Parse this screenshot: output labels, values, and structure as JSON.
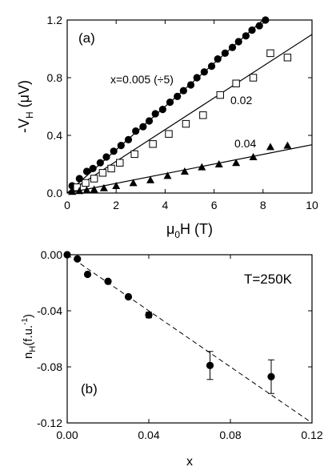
{
  "chart_data": [
    {
      "type": "scatter",
      "panel_label": "(a)",
      "xlabel_base": "μ",
      "xlabel_sub": "0",
      "xlabel_rest": "H (T)",
      "ylabel_pre": "-V",
      "ylabel_sub": "H",
      "ylabel_rest": " (μV)",
      "xlim": [
        0,
        10
      ],
      "ylim": [
        0,
        1.2
      ],
      "xticks": [
        0,
        2,
        4,
        6,
        8,
        10
      ],
      "xtick_labels": [
        "0",
        "2",
        "4",
        "6",
        "8",
        "10"
      ],
      "yticks": [
        0,
        0.4,
        0.8,
        1.2
      ],
      "ytick_labels": [
        "0.0",
        "0.4",
        "0.8",
        "1.2"
      ],
      "series": [
        {
          "name": "x=0.005 (÷5)",
          "marker": "filled-circle",
          "fit_slope": 0.15,
          "fit_xmax": 8.0,
          "x": [
            0.2,
            0.5,
            0.8,
            1.05,
            1.35,
            1.6,
            1.9,
            2.2,
            2.5,
            2.8,
            3.1,
            3.35,
            3.6,
            3.9,
            4.2,
            4.5,
            4.75,
            5.05,
            5.3,
            5.6,
            5.9,
            6.15,
            6.45,
            6.75,
            7.0,
            7.3,
            7.55,
            7.85,
            8.1
          ],
          "y": [
            0.05,
            0.1,
            0.15,
            0.17,
            0.21,
            0.25,
            0.29,
            0.33,
            0.37,
            0.43,
            0.46,
            0.5,
            0.55,
            0.58,
            0.63,
            0.67,
            0.71,
            0.75,
            0.8,
            0.84,
            0.88,
            0.93,
            0.97,
            1.01,
            1.05,
            1.09,
            1.13,
            1.16,
            1.2
          ]
        },
        {
          "name": "0.02",
          "marker": "open-square",
          "fit_slope": 0.11,
          "fit_xmax": 10,
          "x": [
            0.4,
            0.75,
            1.1,
            1.45,
            1.8,
            2.15,
            2.75,
            3.5,
            4.15,
            4.85,
            5.55,
            6.25,
            6.9,
            7.6,
            8.3,
            9.0
          ],
          "y": [
            0.04,
            0.07,
            0.1,
            0.14,
            0.17,
            0.21,
            0.27,
            0.34,
            0.41,
            0.48,
            0.54,
            0.68,
            0.76,
            0.8,
            0.97,
            0.94
          ]
        },
        {
          "name": "0.04",
          "marker": "filled-triangle",
          "fit_slope": 0.0335,
          "fit_xmax": 10,
          "x": [
            0.2,
            0.5,
            0.8,
            1.1,
            1.5,
            2.0,
            2.7,
            3.4,
            4.1,
            4.8,
            5.5,
            6.2,
            6.9,
            7.6,
            8.3,
            9.0
          ],
          "y": [
            0.01,
            0.015,
            0.02,
            0.025,
            0.035,
            0.05,
            0.07,
            0.09,
            0.12,
            0.15,
            0.18,
            0.2,
            0.21,
            0.25,
            0.32,
            0.33
          ]
        }
      ]
    },
    {
      "type": "scatter",
      "panel_label": "(b)",
      "annotation": "T=250K",
      "xlabel": "x",
      "ylabel_pre": "n",
      "ylabel_sub": "H",
      "ylabel_rest": "(f.u.",
      "ylabel_sup": "-1",
      "ylabel_end": ")",
      "xlim": [
        0,
        0.12
      ],
      "ylim": [
        -0.12,
        0
      ],
      "xticks": [
        0,
        0.04,
        0.08,
        0.12
      ],
      "xtick_labels": [
        "0.00",
        "0.04",
        "0.08",
        "0.12"
      ],
      "yticks": [
        0,
        -0.04,
        -0.08,
        -0.12
      ],
      "ytick_labels": [
        "0.00",
        "-0.04",
        "-0.08",
        "-0.12"
      ],
      "fit_line": {
        "x": [
          0,
          0.12
        ],
        "y": [
          0,
          -0.12
        ],
        "style": "dashed"
      },
      "series": [
        {
          "marker": "filled-circle",
          "x": [
            0.0,
            0.005,
            0.01,
            0.02,
            0.03,
            0.04,
            0.07,
            0.1
          ],
          "y": [
            0.0,
            -0.003,
            -0.014,
            -0.019,
            -0.03,
            -0.043,
            -0.079,
            -0.087
          ],
          "err": [
            0,
            0,
            0,
            0,
            0,
            0.002,
            0.01,
            0.012
          ]
        }
      ]
    }
  ]
}
